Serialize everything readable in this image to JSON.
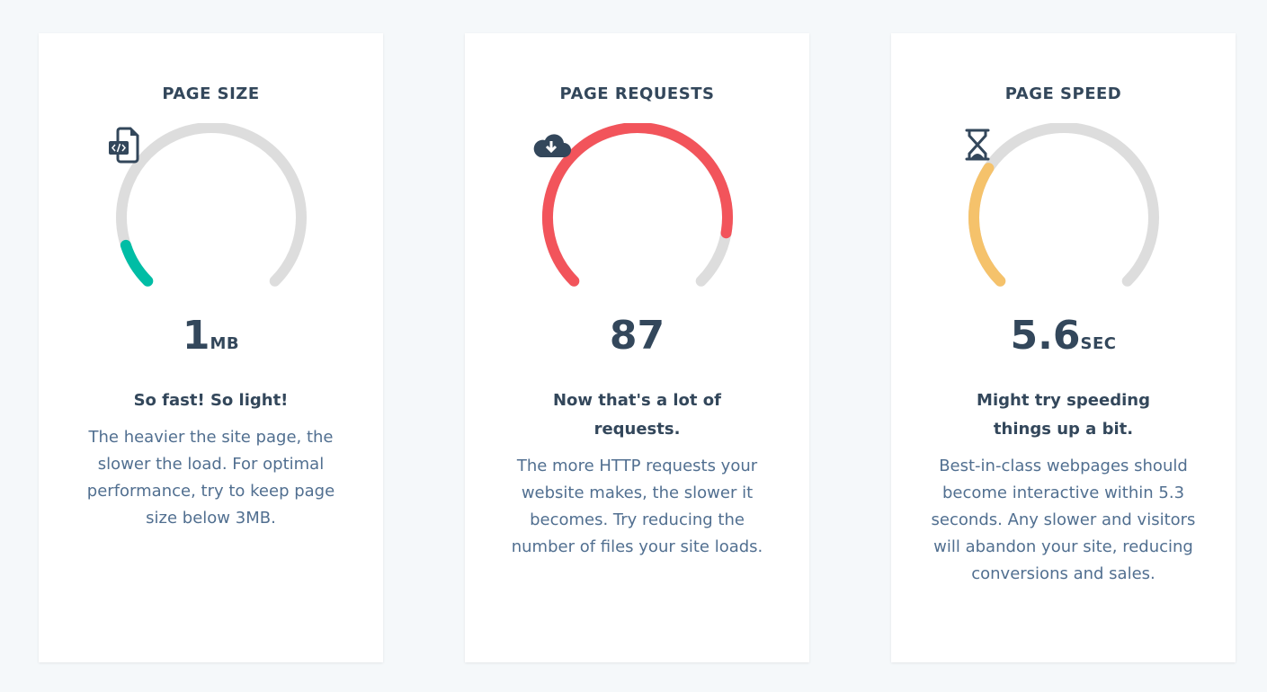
{
  "cards": [
    {
      "title": "PAGE SIZE",
      "icon": "file-code-icon",
      "value": "1",
      "unit": "MB",
      "fraction": 0.1,
      "color": "#00bda5",
      "headline": "So fast! So light!",
      "description": "The heavier the site page, the slower the load. For optimal performance, try to keep page size below 3MB."
    },
    {
      "title": "PAGE REQUESTS",
      "icon": "cloud-download-icon",
      "value": "87",
      "unit": "",
      "fraction": 0.87,
      "color": "#f2545b",
      "headline": "Now that's a lot of requests.",
      "description": "The more HTTP requests your website makes, the slower it becomes. Try reducing the number of files your site loads."
    },
    {
      "title": "PAGE SPEED",
      "icon": "hourglass-icon",
      "value": "5.6",
      "unit": "SEC",
      "fraction": 0.29,
      "color": "#f5c26b",
      "headline": "Might try speeding things up a bit.",
      "description": "Best-in-class webpages should become interactive within 5.3 seconds. Any slower and visitors will abandon your site, reducing conversions and sales."
    }
  ],
  "track_color": "#dddddd"
}
